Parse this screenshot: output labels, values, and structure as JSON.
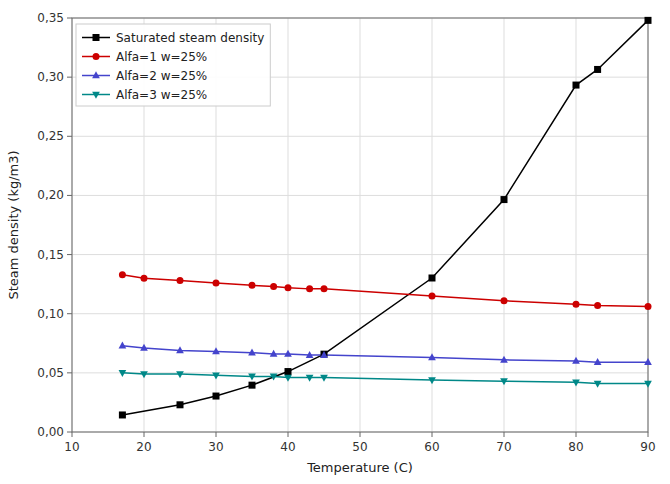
{
  "chart_data": {
    "type": "line",
    "xlabel": "Temperature (C)",
    "ylabel": "Steam density (kg/m3)",
    "xlim": [
      10,
      90
    ],
    "ylim": [
      0.0,
      0.35
    ],
    "xticks": [
      10,
      20,
      30,
      40,
      50,
      60,
      70,
      80,
      90
    ],
    "yticks": [
      {
        "value": 0.0,
        "label": "0,00"
      },
      {
        "value": 0.05,
        "label": "0,05"
      },
      {
        "value": 0.1,
        "label": "0,10"
      },
      {
        "value": 0.15,
        "label": "0,15"
      },
      {
        "value": 0.2,
        "label": "0,20"
      },
      {
        "value": 0.25,
        "label": "0,25"
      },
      {
        "value": 0.3,
        "label": "0,30"
      },
      {
        "value": 0.35,
        "label": "0,35"
      }
    ],
    "grid": true,
    "legend": "upper left",
    "series": [
      {
        "name": "Saturated steam density",
        "color": "#000000",
        "marker": "square",
        "line_style": "solid",
        "x": [
          17,
          25,
          30,
          35,
          40,
          45,
          60,
          70,
          80,
          83,
          90
        ],
        "values": [
          0.0144,
          0.023,
          0.0304,
          0.0396,
          0.0511,
          0.0658,
          0.1302,
          0.1965,
          0.2933,
          0.3065,
          0.348
        ]
      },
      {
        "name": "Alfa=1 w=25%",
        "color": "#cc0000",
        "marker": "circle",
        "line_style": "solid",
        "x": [
          17,
          20,
          25,
          30,
          35,
          38,
          40,
          43,
          45,
          60,
          70,
          80,
          83,
          90
        ],
        "values": [
          0.133,
          0.13,
          0.128,
          0.126,
          0.124,
          0.123,
          0.122,
          0.121,
          0.121,
          0.115,
          0.111,
          0.108,
          0.107,
          0.106
        ]
      },
      {
        "name": "Alfa=2 w=25%",
        "color": "#4444cc",
        "marker": "triangle-up",
        "line_style": "solid",
        "x": [
          17,
          20,
          25,
          30,
          35,
          38,
          40,
          43,
          45,
          60,
          70,
          80,
          83,
          90
        ],
        "values": [
          0.073,
          0.071,
          0.069,
          0.068,
          0.067,
          0.066,
          0.066,
          0.065,
          0.065,
          0.063,
          0.061,
          0.06,
          0.059,
          0.059
        ]
      },
      {
        "name": "Alfa=3 w=25%",
        "color": "#008888",
        "marker": "triangle-down",
        "line_style": "solid",
        "x": [
          17,
          20,
          25,
          30,
          35,
          38,
          40,
          43,
          45,
          60,
          70,
          80,
          83,
          90
        ],
        "values": [
          0.05,
          0.049,
          0.049,
          0.048,
          0.047,
          0.047,
          0.046,
          0.046,
          0.046,
          0.044,
          0.043,
          0.042,
          0.041,
          0.041
        ]
      }
    ]
  }
}
